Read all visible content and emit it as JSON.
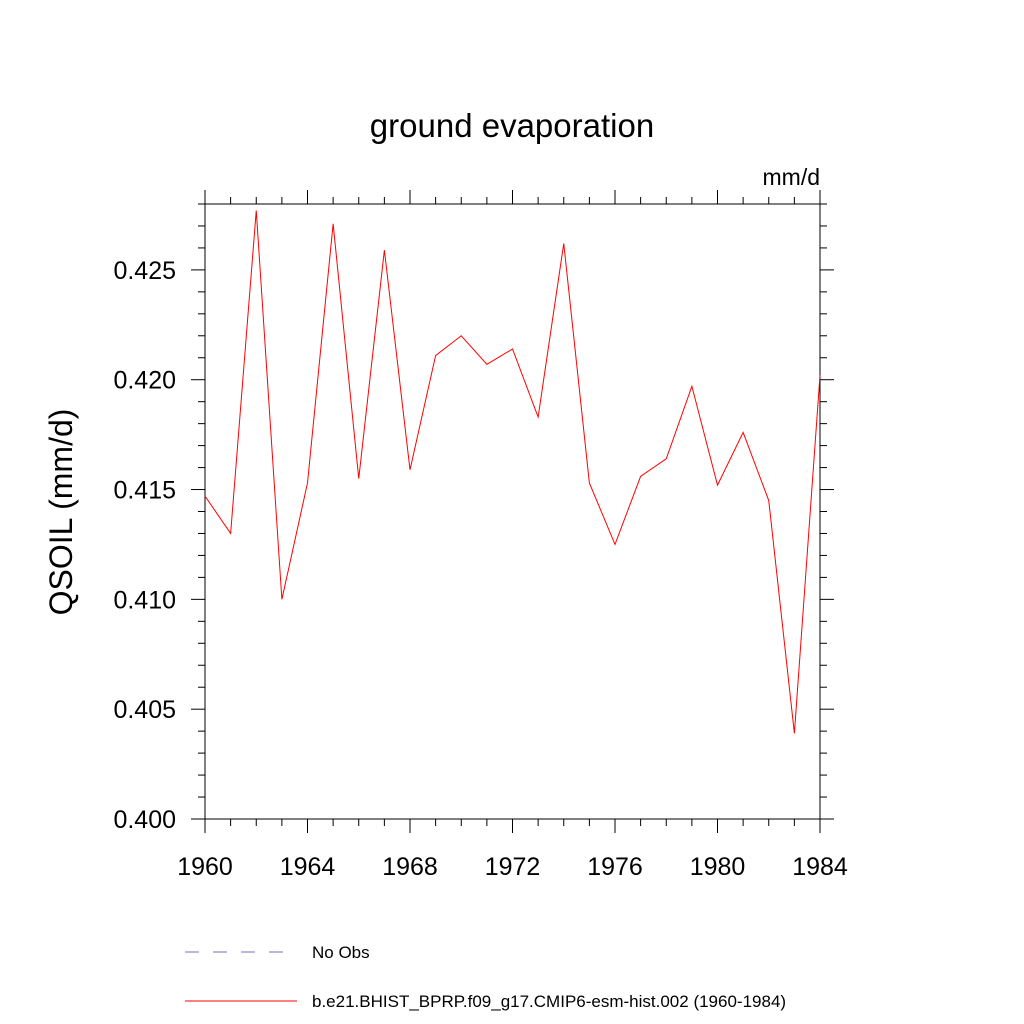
{
  "chart_data": {
    "type": "line",
    "title": "ground evaporation",
    "units": "mm/d",
    "ylabel": "QSOIL  (mm/d)",
    "xlabel": "",
    "xlim": [
      1960,
      1984
    ],
    "ylim": [
      0.4,
      0.428
    ],
    "x_ticks": [
      1960,
      1964,
      1968,
      1972,
      1976,
      1980,
      1984
    ],
    "x_tick_labels": [
      "1960",
      "1964",
      "1968",
      "1972",
      "1976",
      "1980",
      "1984"
    ],
    "y_ticks": [
      0.4,
      0.405,
      0.41,
      0.415,
      0.42,
      0.425
    ],
    "y_tick_labels": [
      "0.400",
      "0.405",
      "0.410",
      "0.415",
      "0.420",
      "0.425"
    ],
    "grid": false,
    "legend_position": "bottom",
    "series": [
      {
        "name": "b.e21.BHIST_BPRP.f09_g17.CMIP6-esm-hist.002 (1960-1984)",
        "color": "#ff0000",
        "dash": "solid",
        "x": [
          1960,
          1961,
          1962,
          1963,
          1964,
          1965,
          1966,
          1967,
          1968,
          1969,
          1970,
          1971,
          1972,
          1973,
          1974,
          1975,
          1976,
          1977,
          1978,
          1979,
          1980,
          1981,
          1982,
          1983,
          1984
        ],
        "values": [
          0.4147,
          0.413,
          0.4277,
          0.41,
          0.4153,
          0.4271,
          0.4155,
          0.4259,
          0.4159,
          0.4211,
          0.422,
          0.4207,
          0.4214,
          0.4183,
          0.4262,
          0.4153,
          0.4125,
          0.4156,
          0.4164,
          0.4197,
          0.4152,
          0.4176,
          0.4145,
          0.4039,
          0.4202
        ]
      }
    ],
    "legend": [
      {
        "label": "No Obs",
        "color": "#7a6fb0",
        "dash": "dashed"
      },
      {
        "label": "b.e21.BHIST_BPRP.f09_g17.CMIP6-esm-hist.002 (1960-1984)",
        "color": "#ff0000",
        "dash": "solid"
      }
    ]
  }
}
